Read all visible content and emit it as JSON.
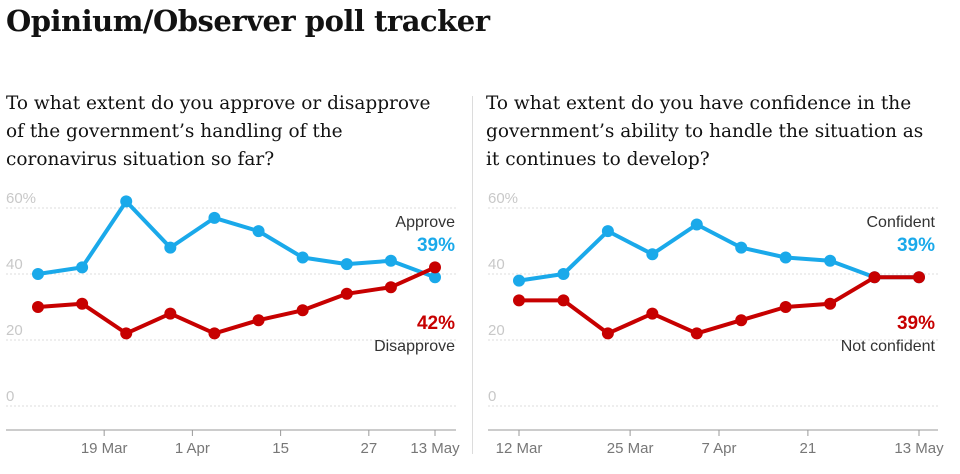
{
  "page": {
    "title": "Opinium/Observer poll tracker"
  },
  "colors": {
    "blue": "#1aa9ea",
    "red": "#c70000"
  },
  "chart_data": [
    {
      "type": "line",
      "title": "To what extent do you approve or disapprove of the government’s handling of the coronavirus situation so far?",
      "ylim": [
        0,
        65
      ],
      "yticks": [
        "0",
        "20",
        "40",
        "60%"
      ],
      "ytick_values": [
        0,
        20,
        40,
        60
      ],
      "x_ticks": [
        {
          "label": "19 Mar",
          "at": 1.5
        },
        {
          "label": "1 Apr",
          "at": 3.5
        },
        {
          "label": "15",
          "at": 5.5
        },
        {
          "label": "27",
          "at": 7.5
        },
        {
          "label": "13 May",
          "at": 9
        }
      ],
      "n_points": 10,
      "series": [
        {
          "name": "Approve",
          "color": "#1aa9ea",
          "end_label": "39%",
          "values": [
            40,
            42,
            62,
            48,
            57,
            53,
            45,
            43,
            44,
            39
          ]
        },
        {
          "name": "Disapprove",
          "color": "#c70000",
          "end_label": "42%",
          "values": [
            30,
            31,
            22,
            28,
            22,
            26,
            29,
            34,
            36,
            42
          ]
        }
      ]
    },
    {
      "type": "line",
      "title": "To what extent do you have confidence in the government’s ability to handle the situation as it continues to develop?",
      "ylim": [
        0,
        65
      ],
      "yticks": [
        "0",
        "20",
        "40",
        "60%"
      ],
      "ytick_values": [
        0,
        20,
        40,
        60
      ],
      "x_ticks": [
        {
          "label": "12 Mar",
          "at": 0
        },
        {
          "label": "25 Mar",
          "at": 2.5
        },
        {
          "label": "7 Apr",
          "at": 4.5
        },
        {
          "label": "21",
          "at": 6.5
        },
        {
          "label": "13 May",
          "at": 9
        }
      ],
      "n_points": 10,
      "series": [
        {
          "name": "Confident",
          "color": "#1aa9ea",
          "end_label": "39%",
          "values": [
            38,
            40,
            53,
            46,
            55,
            48,
            45,
            44,
            39,
            39
          ]
        },
        {
          "name": "Not confident",
          "color": "#c70000",
          "end_label": "39%",
          "values": [
            32,
            32,
            22,
            28,
            22,
            26,
            30,
            31,
            39,
            39
          ]
        }
      ]
    }
  ]
}
